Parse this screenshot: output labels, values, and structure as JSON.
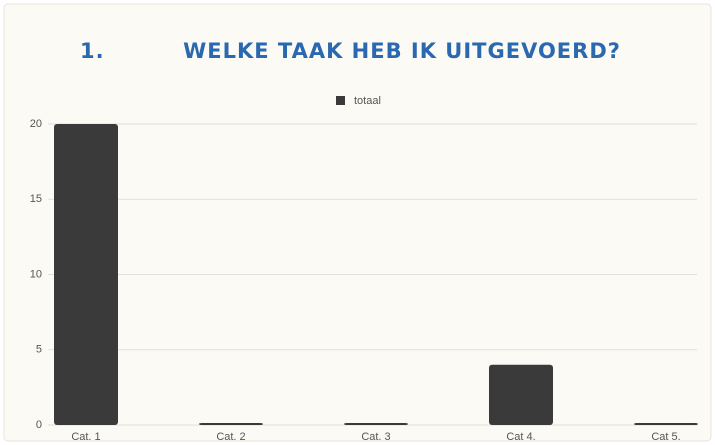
{
  "chart_data": {
    "type": "bar",
    "title_number": "1.",
    "title": "WELKE TAAK HEB IK UITGEVOERD?",
    "categories": [
      "Cat. 1",
      "Cat. 2",
      "Cat. 3",
      "Cat 4.",
      "Cat 5."
    ],
    "series": [
      {
        "name": "totaal",
        "color": "#3a3a3a",
        "values": [
          20,
          0,
          0,
          4,
          0
        ]
      }
    ],
    "ylim": [
      0,
      20
    ],
    "yticks": [
      0,
      5,
      10,
      15,
      20
    ],
    "grid": true,
    "legend": "top"
  }
}
